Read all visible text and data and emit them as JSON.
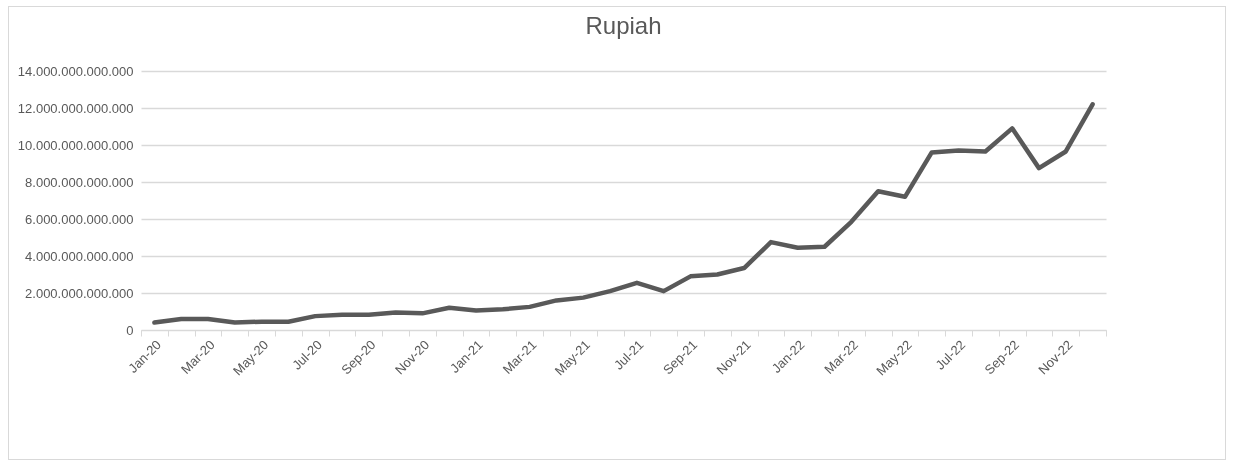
{
  "chart_data": {
    "type": "line",
    "title": "Rupiah",
    "categories": [
      "Jan-20",
      null,
      "Mar-20",
      null,
      "May-20",
      null,
      "Jul-20",
      null,
      "Sep-20",
      null,
      "Nov-20",
      null,
      "Jan-21",
      null,
      "Mar-21",
      null,
      "May-21",
      null,
      "Jul-21",
      null,
      "Sep-21",
      null,
      "Nov-21",
      null,
      "Jan-22",
      null,
      "Mar-22",
      null,
      "May-22",
      null,
      "Jul-22",
      null,
      "Sep-22",
      null,
      "Nov-22",
      null
    ],
    "series": [
      {
        "color": "#595959",
        "values": [
          400000000000,
          600000000000,
          600000000000,
          400000000000,
          450000000000,
          450000000000,
          750000000000,
          820000000000,
          820000000000,
          950000000000,
          900000000000,
          1200000000000,
          1050000000000,
          1120000000000,
          1250000000000,
          1600000000000,
          1750000000000,
          2100000000000,
          2550000000000,
          2100000000000,
          2900000000000,
          3000000000000,
          3350000000000,
          4750000000000,
          4450000000000,
          4500000000000,
          5850000000000,
          7500000000000,
          7200000000000,
          9600000000000,
          9700000000000,
          9650000000000,
          10900000000000,
          8750000000000,
          9650000000000,
          12200000000000
        ]
      }
    ],
    "ylim": [
      0,
      14000000000000
    ],
    "yticks": [
      0,
      {
        "value": 2000000000000,
        "label": "2.000.000.000.000"
      },
      {
        "value": 4000000000000,
        "label": "4.000.000.000.000"
      },
      {
        "value": 6000000000000,
        "label": "6.000.000.000.000"
      },
      {
        "value": 8000000000000,
        "label": "8.000.000.000.000"
      },
      {
        "value": 10000000000000,
        "label": "10.000.000.000.000"
      },
      {
        "value": 12000000000000,
        "label": "12.000.000.000.000"
      },
      {
        "value": 14000000000000,
        "label": "14.000.000.000.000"
      }
    ],
    "grid": "y",
    "line_style": "solid"
  }
}
